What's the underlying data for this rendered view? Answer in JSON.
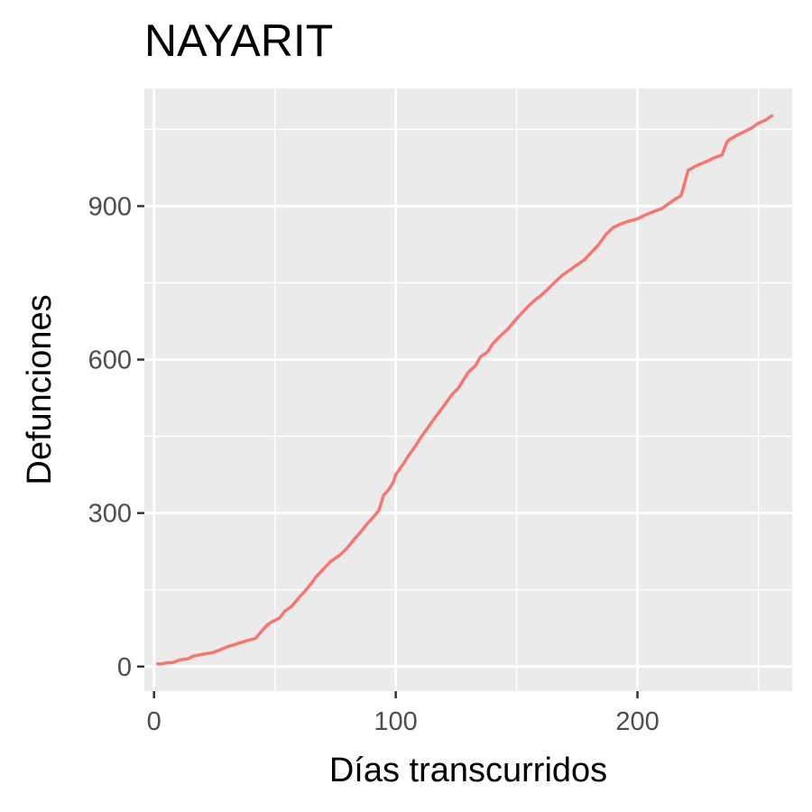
{
  "chart_data": {
    "type": "line",
    "title": "NAYARIT",
    "xlabel": "Días transcurridos",
    "ylabel": "Defunciones",
    "xlim": [
      -4,
      264
    ],
    "ylim": [
      -48,
      1130
    ],
    "x_ticks": [
      0,
      100,
      200
    ],
    "y_ticks": [
      0,
      300,
      600,
      900
    ],
    "grid": true,
    "legend": "none",
    "colors": {
      "line": "#F8766D",
      "panel": "#EBEBEB",
      "grid": "#FFFFFF"
    },
    "series": [
      {
        "x": [
          1,
          3,
          5,
          8,
          10,
          12,
          14,
          16,
          18,
          20,
          24,
          27,
          30,
          34,
          38,
          42,
          45,
          47,
          49,
          52,
          54,
          57,
          60,
          62,
          65,
          67,
          70,
          73,
          75,
          77,
          80,
          83,
          85,
          88,
          90,
          93,
          95,
          97,
          99,
          100,
          103,
          105,
          108,
          110,
          113,
          116,
          120,
          123,
          126,
          130,
          133,
          135,
          138,
          140,
          143,
          146,
          150,
          153,
          155,
          158,
          160,
          163,
          166,
          169,
          172,
          175,
          178,
          181,
          184,
          187,
          190,
          193,
          196,
          200,
          203,
          206,
          210,
          213,
          216,
          218,
          221,
          223,
          224,
          226,
          229,
          232,
          235,
          237,
          238,
          241,
          244,
          247,
          250,
          253,
          256
        ],
        "y": [
          5,
          5,
          7,
          8,
          12,
          14,
          15,
          20,
          22,
          24,
          27,
          32,
          38,
          44,
          50,
          55,
          72,
          82,
          88,
          95,
          108,
          118,
          135,
          145,
          162,
          175,
          190,
          205,
          212,
          218,
          232,
          250,
          260,
          278,
          288,
          305,
          335,
          345,
          360,
          375,
          395,
          410,
          430,
          445,
          465,
          485,
          510,
          530,
          545,
          575,
          588,
          605,
          615,
          630,
          645,
          658,
          680,
          695,
          705,
          718,
          725,
          738,
          752,
          765,
          775,
          785,
          795,
          810,
          825,
          845,
          858,
          865,
          870,
          875,
          882,
          888,
          895,
          905,
          915,
          920,
          970,
          975,
          978,
          982,
          988,
          995,
          1000,
          1025,
          1030,
          1038,
          1045,
          1052,
          1062,
          1068,
          1078
        ]
      }
    ]
  }
}
